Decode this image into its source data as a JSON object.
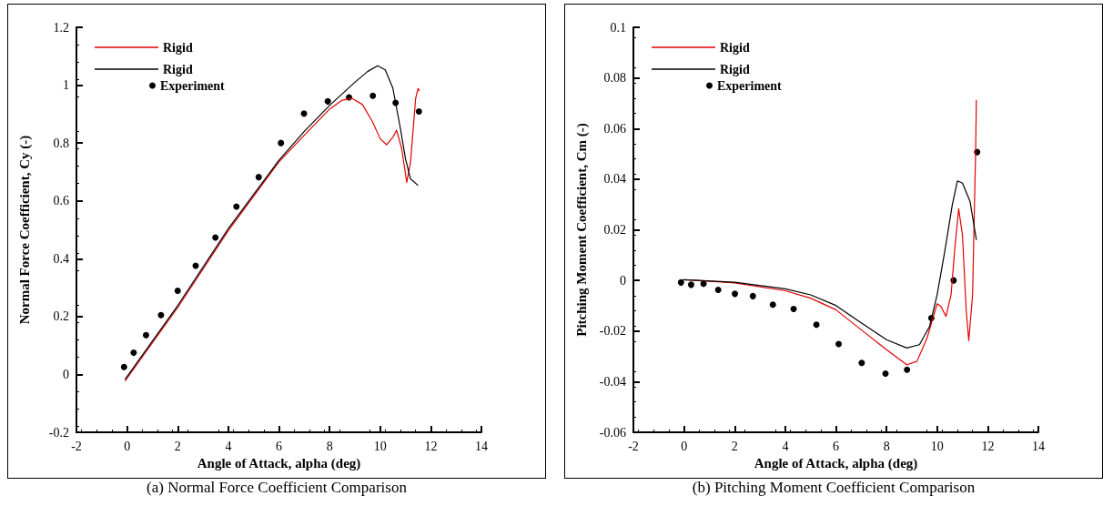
{
  "chart_data": [
    {
      "type": "line",
      "xlabel": "Angle of Attack, alpha (deg)",
      "ylabel": "Normal Force Coefficient, Cy (-)",
      "xlim": [
        -2,
        14
      ],
      "xticks": [
        -2,
        0,
        2,
        4,
        6,
        8,
        10,
        12,
        14
      ],
      "ylim": [
        -0.2,
        1.2
      ],
      "yticks": [
        -0.2,
        0,
        0.2,
        0.4,
        0.6,
        0.8,
        1,
        1.2
      ],
      "grid": false,
      "legend": "top left",
      "annotations": [
        "(a)  Normal Force Coefficient Comparison"
      ],
      "series": [
        {
          "name": "Rigid",
          "color": "#e00000",
          "marker": "none",
          "x": [
            -0.08,
            2,
            4,
            6,
            7,
            8,
            8.5,
            8.9,
            9.3,
            9.7,
            10,
            10.25,
            10.5,
            10.65,
            10.85,
            11.05,
            11.2,
            11.4,
            11.5,
            11.55
          ],
          "values": [
            -0.023,
            0.231,
            0.497,
            0.735,
            0.827,
            0.917,
            0.948,
            0.954,
            0.933,
            0.873,
            0.815,
            0.794,
            0.82,
            0.844,
            0.78,
            0.664,
            0.734,
            0.954,
            0.989,
            0.98
          ]
        },
        {
          "name": "Rigid",
          "color": "#000000",
          "marker": "none",
          "x": [
            -0.08,
            2,
            4,
            6,
            7,
            8,
            9,
            9.5,
            9.9,
            10.2,
            10.5,
            10.8,
            11,
            11.2,
            11.5
          ],
          "values": [
            -0.017,
            0.238,
            0.504,
            0.74,
            0.84,
            0.93,
            1.01,
            1.047,
            1.067,
            1.053,
            0.99,
            0.85,
            0.745,
            0.676,
            0.653
          ]
        },
        {
          "name": "Experiment",
          "type": "scatter",
          "color": "#000000",
          "marker": "circle",
          "x": [
            -0.12,
            0.26,
            0.75,
            1.34,
            2,
            2.71,
            3.49,
            4.32,
            5.2,
            6.08,
            6.99,
            7.93,
            8.77,
            9.71,
            10.61,
            11.53
          ],
          "values": [
            0.026,
            0.075,
            0.136,
            0.205,
            0.289,
            0.376,
            0.473,
            0.58,
            0.682,
            0.8,
            0.902,
            0.944,
            0.958,
            0.963,
            0.939,
            0.909
          ]
        }
      ]
    },
    {
      "type": "line",
      "xlabel": "Angle of Attack, alpha (deg)",
      "ylabel": "Pitching Moment Coefficient, Cm (-)",
      "xlim": [
        -2,
        14
      ],
      "xticks": [
        -2,
        0,
        2,
        4,
        6,
        8,
        10,
        12,
        14
      ],
      "ylim": [
        -0.06,
        0.1
      ],
      "yticks": [
        -0.06,
        -0.04,
        -0.02,
        0,
        0.02,
        0.04,
        0.06,
        0.08,
        0.1
      ],
      "grid": false,
      "legend": "top left",
      "annotations": [
        "(b)  Pitching Moment Coefficient Comparison"
      ],
      "series": [
        {
          "name": "Rigid",
          "color": "#e00000",
          "marker": "none",
          "x": [
            0,
            2,
            4,
            5,
            6,
            7,
            8,
            8.8,
            9.2,
            9.6,
            10,
            10.15,
            10.35,
            10.55,
            10.7,
            10.85,
            11,
            11.15,
            11.25,
            11.4,
            11.52,
            11.55
          ],
          "values": [
            0.0003,
            -0.001,
            -0.0041,
            -0.007,
            -0.0116,
            -0.0195,
            -0.0274,
            -0.0333,
            -0.032,
            -0.0228,
            -0.0092,
            -0.0103,
            -0.0142,
            -0.0057,
            0.0128,
            0.0283,
            0.018,
            -0.0122,
            -0.0238,
            -0.0057,
            0.0509,
            0.0713
          ]
        },
        {
          "name": "Rigid",
          "color": "#000000",
          "marker": "none",
          "x": [
            -0.05,
            2,
            4,
            5,
            6,
            7,
            8,
            8.8,
            9.3,
            9.7,
            10,
            10.3,
            10.6,
            10.8,
            11,
            11.3,
            11.55
          ],
          "values": [
            0.0003,
            -0.0007,
            -0.0033,
            -0.0057,
            -0.0099,
            -0.0168,
            -0.0234,
            -0.0267,
            -0.0254,
            -0.0182,
            -0.0057,
            0.0114,
            0.0299,
            0.0393,
            0.0384,
            0.0312,
            0.016
          ]
        },
        {
          "name": "Experiment",
          "type": "scatter",
          "color": "#000000",
          "marker": "circle",
          "x": [
            -0.12,
            0.28,
            0.77,
            1.35,
            2.01,
            2.72,
            3.51,
            4.33,
            5.23,
            6.11,
            7.02,
            7.96,
            8.81,
            9.77,
            10.65,
            11.58
          ],
          "values": [
            -0.0008,
            -0.0017,
            -0.0013,
            -0.0037,
            -0.0053,
            -0.0062,
            -0.0096,
            -0.0113,
            -0.0175,
            -0.0251,
            -0.0326,
            -0.0368,
            -0.0353,
            -0.0149,
            0,
            0.0507
          ]
        }
      ]
    }
  ]
}
